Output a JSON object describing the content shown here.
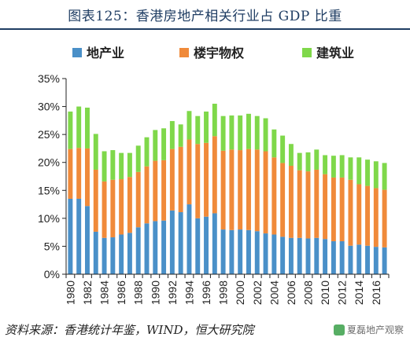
{
  "title": "图表125：香港房地产相关行业占 GDP 比重",
  "source": "资料来源：香港统计年鉴，WIND，恒大研究院",
  "watermark": "夏磊地产观察",
  "colors": {
    "real_estate": "#4a90c8",
    "ownership": "#f08a3a",
    "construction": "#7fd84a"
  },
  "chart_data": {
    "type": "bar",
    "stacked": true,
    "x": [
      1980,
      1981,
      1982,
      1983,
      1984,
      1985,
      1986,
      1987,
      1988,
      1989,
      1990,
      1991,
      1992,
      1993,
      1994,
      1995,
      1996,
      1997,
      1998,
      1999,
      2000,
      2001,
      2002,
      2003,
      2004,
      2005,
      2006,
      2007,
      2008,
      2009,
      2010,
      2011,
      2012,
      2013,
      2014,
      2015,
      2016,
      2017
    ],
    "x_tick_labels": [
      "1980",
      "1982",
      "1984",
      "1986",
      "1988",
      "1990",
      "1992",
      "1994",
      "1996",
      "1998",
      "2000",
      "2002",
      "2004",
      "2006",
      "2008",
      "2010",
      "2012",
      "2014",
      "2016"
    ],
    "ylim": [
      0,
      35
    ],
    "y_tick_labels": [
      "0%",
      "5%",
      "10%",
      "15%",
      "20%",
      "25%",
      "30%",
      "35%"
    ],
    "legend_position": "top",
    "series": [
      {
        "name": "地产业",
        "color_key": "real_estate",
        "values": [
          13.5,
          13.5,
          12.2,
          7.6,
          6.5,
          6.6,
          7.1,
          7.4,
          8.4,
          9.1,
          9.5,
          9.6,
          11.4,
          11.1,
          12.5,
          10.0,
          10.3,
          10.9,
          8.0,
          7.9,
          8.0,
          7.9,
          7.7,
          7.3,
          7.1,
          6.7,
          6.5,
          6.5,
          6.4,
          6.5,
          6.3,
          5.9,
          5.9,
          5.1,
          5.3,
          5.1,
          4.9,
          4.8
        ]
      },
      {
        "name": "楼宇物权",
        "color_key": "ownership",
        "values": [
          8.9,
          9.1,
          10.3,
          11.1,
          10.1,
          10.3,
          9.9,
          10.0,
          9.9,
          10.2,
          10.8,
          10.8,
          11.0,
          11.7,
          11.6,
          13.3,
          13.2,
          13.8,
          14.1,
          14.4,
          14.2,
          14.5,
          14.6,
          14.7,
          13.8,
          13.2,
          12.9,
          12.1,
          12.0,
          12.2,
          11.6,
          11.4,
          11.4,
          11.8,
          10.8,
          10.7,
          10.5,
          10.3
        ]
      },
      {
        "name": "建筑业",
        "color_key": "construction",
        "values": [
          6.7,
          7.4,
          7.3,
          6.4,
          5.4,
          5.3,
          4.7,
          4.3,
          4.7,
          5.2,
          5.5,
          5.7,
          5.0,
          4.0,
          5.1,
          5.0,
          5.6,
          5.8,
          6.2,
          6.1,
          6.2,
          6.3,
          6.0,
          5.9,
          5.0,
          4.9,
          3.9,
          3.1,
          3.4,
          3.6,
          3.4,
          3.9,
          4.0,
          4.0,
          4.8,
          4.7,
          4.8,
          4.8
        ]
      }
    ]
  }
}
